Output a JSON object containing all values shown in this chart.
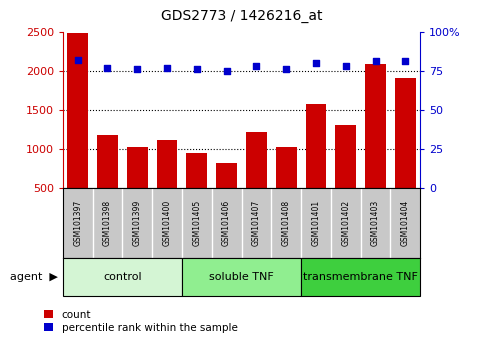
{
  "title": "GDS2773 / 1426216_at",
  "samples": [
    "GSM101397",
    "GSM101398",
    "GSM101399",
    "GSM101400",
    "GSM101405",
    "GSM101406",
    "GSM101407",
    "GSM101408",
    "GSM101401",
    "GSM101402",
    "GSM101403",
    "GSM101404"
  ],
  "counts": [
    2480,
    1170,
    1020,
    1110,
    950,
    820,
    1210,
    1020,
    1570,
    1310,
    2090,
    1910
  ],
  "percentile": [
    82,
    77,
    76,
    77,
    76,
    75,
    78,
    76,
    80,
    78,
    81,
    81
  ],
  "bar_color": "#cc0000",
  "dot_color": "#0000cc",
  "ylim_left": [
    500,
    2500
  ],
  "ylim_right": [
    0,
    100
  ],
  "yticks_left": [
    500,
    1000,
    1500,
    2000,
    2500
  ],
  "yticks_right": [
    0,
    25,
    50,
    75,
    100
  ],
  "groups": [
    {
      "label": "control",
      "start": 0,
      "end": 4,
      "color": "#d4f5d4"
    },
    {
      "label": "soluble TNF",
      "start": 4,
      "end": 8,
      "color": "#90ee90"
    },
    {
      "label": "transmembrane TNF",
      "start": 8,
      "end": 12,
      "color": "#3ecf3e"
    }
  ],
  "agent_label": "agent",
  "legend_count_label": "count",
  "legend_pct_label": "percentile rank within the sample",
  "bg_color": "#ffffff",
  "tick_label_area_color": "#c8c8c8",
  "right_axis_color": "#0000cc",
  "left_axis_color": "#cc0000",
  "grid_color": "#000000"
}
